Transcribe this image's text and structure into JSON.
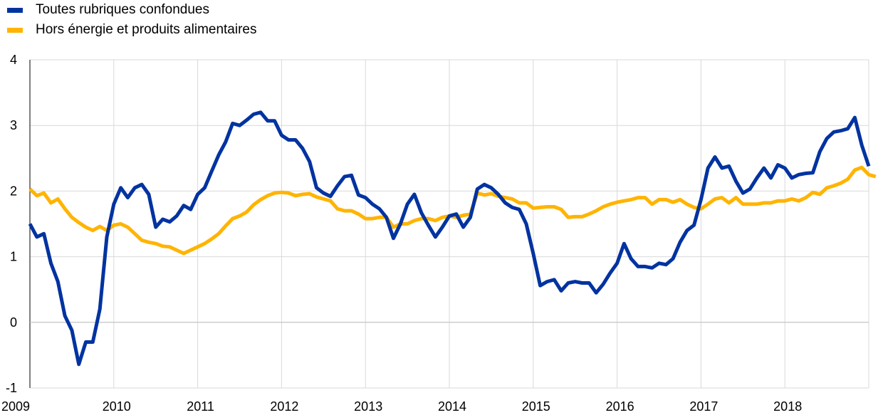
{
  "colors": {
    "headline": "#0033A0",
    "core": "#FFB400",
    "grid": "#d9d9d9"
  },
  "legend": {
    "headline": "Toutes rubriques confondues",
    "core": "Hors énergie et produits alimentaires"
  },
  "chart_data": {
    "type": "line",
    "title": "",
    "xlabel": "",
    "ylabel": "",
    "xlim": [
      2009,
      2019
    ],
    "ylim": [
      -1,
      4
    ],
    "yticks": [
      -1,
      0,
      1,
      2,
      3,
      4
    ],
    "ytick_labels": [
      "-1",
      "0",
      "1",
      "2",
      "3",
      "4"
    ],
    "xticks": [
      2009,
      2010,
      2011,
      2012,
      2013,
      2014,
      2015,
      2016,
      2017,
      2018
    ],
    "xtick_labels": [
      "2009",
      "2010",
      "2011",
      "2012",
      "2013",
      "2014",
      "2015",
      "2016",
      "2017",
      "2018"
    ],
    "grid": true,
    "legend_position": "top-left",
    "frequency": "monthly",
    "start": "2009-01",
    "series": [
      {
        "name": "Toutes rubriques confondues",
        "color": "#0033A0",
        "values": [
          1.5,
          1.3,
          1.35,
          0.9,
          0.62,
          0.1,
          -0.12,
          -0.64,
          -0.3,
          -0.3,
          0.2,
          1.3,
          1.8,
          2.05,
          1.9,
          2.05,
          2.1,
          1.95,
          1.45,
          1.57,
          1.53,
          1.62,
          1.78,
          1.72,
          1.95,
          2.05,
          2.3,
          2.55,
          2.75,
          3.03,
          3.0,
          3.08,
          3.17,
          3.2,
          3.07,
          3.07,
          2.85,
          2.78,
          2.78,
          2.65,
          2.45,
          2.05,
          1.97,
          1.92,
          2.08,
          2.22,
          2.24,
          1.94,
          1.9,
          1.8,
          1.73,
          1.6,
          1.28,
          1.5,
          1.8,
          1.95,
          1.67,
          1.48,
          1.3,
          1.45,
          1.62,
          1.65,
          1.45,
          1.6,
          2.03,
          2.1,
          2.05,
          1.95,
          1.82,
          1.75,
          1.72,
          1.5,
          1.05,
          0.56,
          0.62,
          0.65,
          0.48,
          0.6,
          0.62,
          0.6,
          0.6,
          0.45,
          0.58,
          0.75,
          0.9,
          1.2,
          0.97,
          0.85,
          0.85,
          0.83,
          0.9,
          0.88,
          0.97,
          1.22,
          1.4,
          1.48,
          1.87,
          2.35,
          2.52,
          2.35,
          2.38,
          2.15,
          1.97,
          2.03,
          2.2,
          2.35,
          2.2,
          2.4,
          2.35,
          2.2,
          2.25,
          2.27,
          2.28,
          2.6,
          2.8,
          2.9,
          2.92,
          2.95,
          3.12,
          2.7,
          2.38
        ]
      },
      {
        "name": "Hors énergie et produits alimentaires",
        "color": "#FFB400",
        "values": [
          2.03,
          1.93,
          1.97,
          1.82,
          1.88,
          1.73,
          1.6,
          1.52,
          1.45,
          1.4,
          1.46,
          1.4,
          1.48,
          1.5,
          1.45,
          1.35,
          1.25,
          1.22,
          1.2,
          1.16,
          1.15,
          1.1,
          1.05,
          1.1,
          1.15,
          1.2,
          1.27,
          1.35,
          1.47,
          1.58,
          1.62,
          1.68,
          1.79,
          1.87,
          1.93,
          1.97,
          1.98,
          1.97,
          1.93,
          1.95,
          1.96,
          1.91,
          1.88,
          1.85,
          1.73,
          1.7,
          1.7,
          1.65,
          1.58,
          1.58,
          1.6,
          1.6,
          1.45,
          1.5,
          1.5,
          1.55,
          1.58,
          1.58,
          1.55,
          1.6,
          1.62,
          1.6,
          1.63,
          1.65,
          1.97,
          1.94,
          1.96,
          1.92,
          1.9,
          1.88,
          1.82,
          1.82,
          1.74,
          1.75,
          1.76,
          1.76,
          1.72,
          1.6,
          1.61,
          1.61,
          1.65,
          1.7,
          1.76,
          1.8,
          1.83,
          1.85,
          1.87,
          1.9,
          1.9,
          1.8,
          1.87,
          1.87,
          1.83,
          1.87,
          1.8,
          1.75,
          1.73,
          1.8,
          1.88,
          1.9,
          1.82,
          1.9,
          1.8,
          1.8,
          1.8,
          1.82,
          1.82,
          1.85,
          1.85,
          1.88,
          1.85,
          1.9,
          1.98,
          1.95,
          2.05,
          2.08,
          2.12,
          2.18,
          2.32,
          2.36,
          2.25,
          2.22
        ]
      }
    ]
  }
}
